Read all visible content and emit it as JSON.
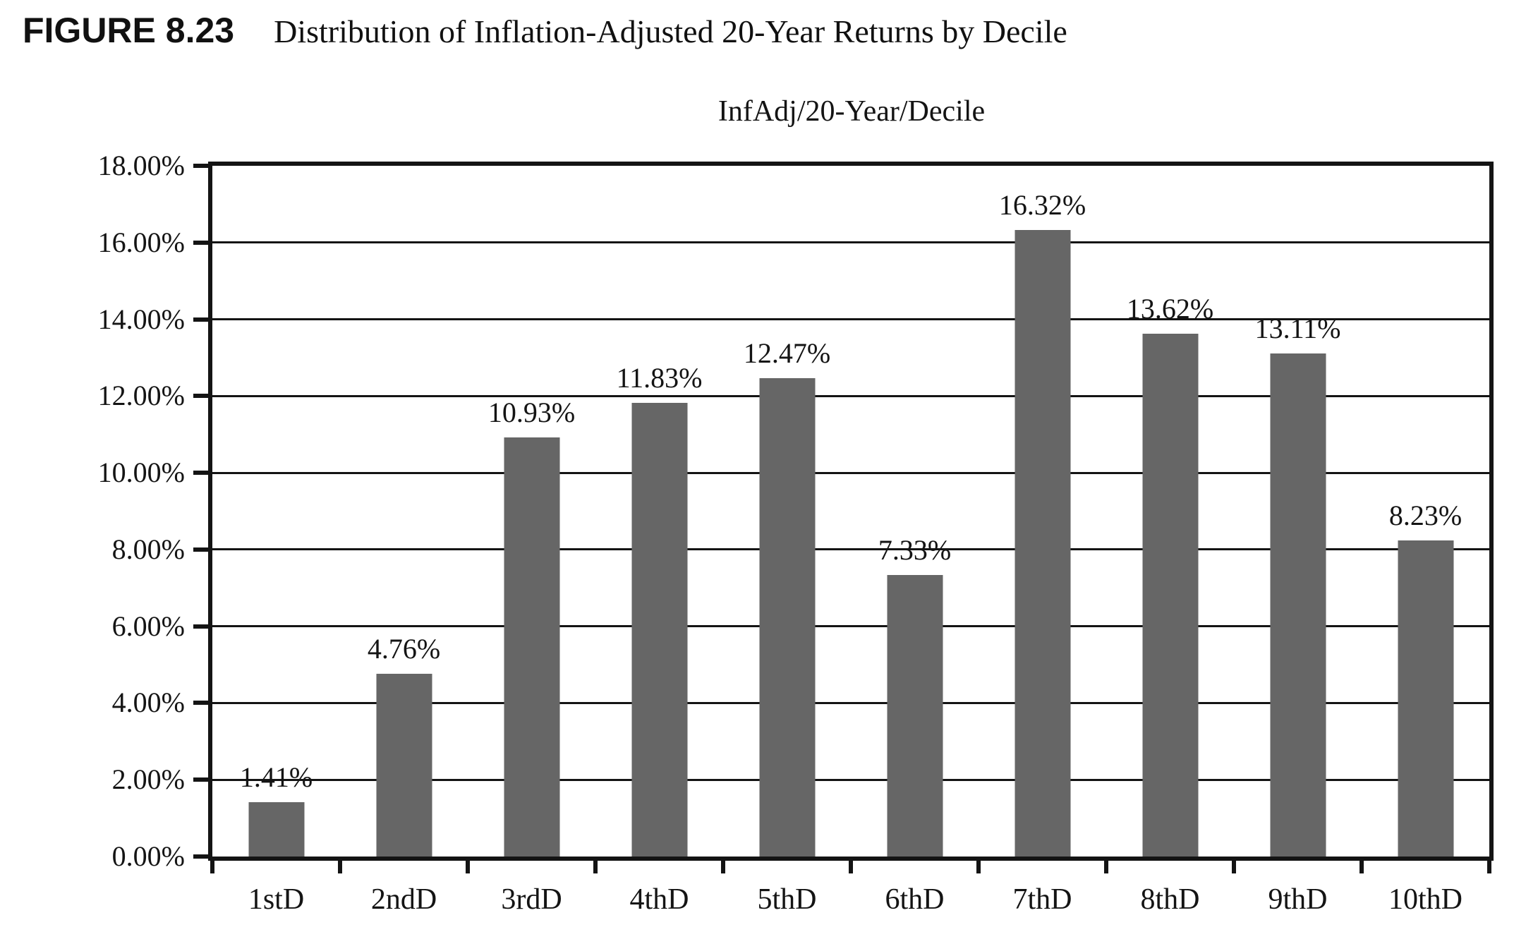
{
  "figure": {
    "label": "FIGURE 8.23",
    "title": "Distribution of Inflation-Adjusted 20-Year Returns by Decile"
  },
  "chart_data": {
    "type": "bar",
    "title": "InfAdj/20-Year/Decile",
    "categories": [
      "1stD",
      "2ndD",
      "3rdD",
      "4thD",
      "5thD",
      "6thD",
      "7thD",
      "8thD",
      "9thD",
      "10thD"
    ],
    "values": [
      1.41,
      4.76,
      10.93,
      11.83,
      12.47,
      7.33,
      16.32,
      13.62,
      13.11,
      8.23
    ],
    "value_labels": [
      "1.41%",
      "4.76%",
      "10.93%",
      "11.83%",
      "12.47%",
      "7.33%",
      "16.32%",
      "13.62%",
      "13.11%",
      "8.23%"
    ],
    "y_ticks": [
      "0.00%",
      "2.00%",
      "4.00%",
      "6.00%",
      "8.00%",
      "10.00%",
      "12.00%",
      "14.00%",
      "16.00%",
      "18.00%"
    ],
    "ylim": [
      0,
      18
    ],
    "y_tick_step": 2,
    "xlabel": "",
    "ylabel": "",
    "grid": true,
    "legend": "none",
    "bar_color": "#666666",
    "axis_color": "#141414"
  }
}
